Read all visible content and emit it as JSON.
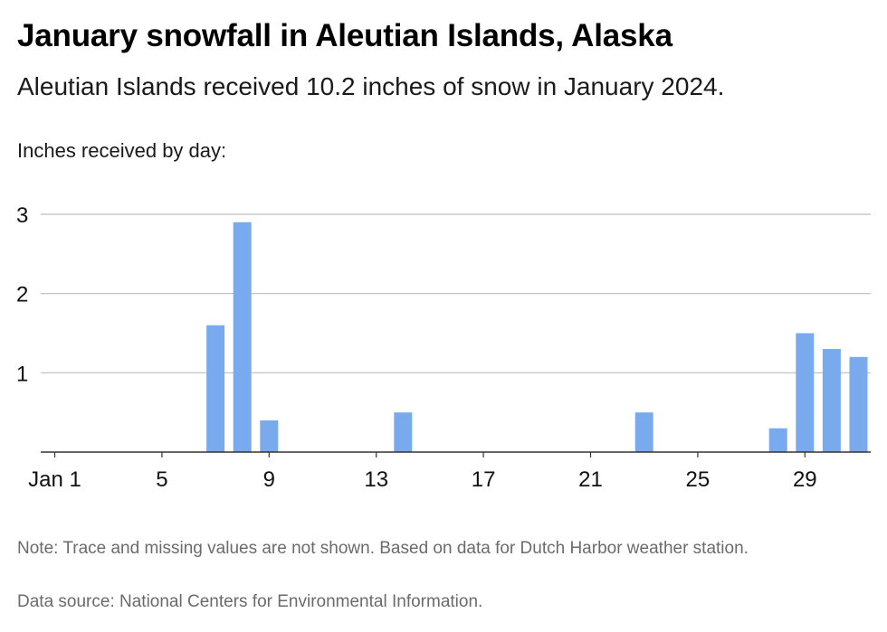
{
  "header": {
    "title": "January snowfall in Aleutian Islands, Alaska",
    "subtitle": "Aleutian Islands received 10.2 inches of snow in January 2024.",
    "axis_caption": "Inches received by day:"
  },
  "footer": {
    "note": "Note: Trace and missing values are not shown. Based on data for Dutch Harbor weather station.",
    "source": "Data source: National Centers for Environmental Information."
  },
  "colors": {
    "bar": "#7aaaee",
    "grid": "#bdbdbd",
    "axis": "#333333"
  },
  "chart_data": {
    "type": "bar",
    "title": "January snowfall in Aleutian Islands, Alaska",
    "ylabel": "Inches received by day:",
    "x": [
      1,
      2,
      3,
      4,
      5,
      6,
      7,
      8,
      9,
      10,
      11,
      12,
      13,
      14,
      15,
      16,
      17,
      18,
      19,
      20,
      21,
      22,
      23,
      24,
      25,
      26,
      27,
      28,
      29,
      30,
      31
    ],
    "values": [
      0,
      0,
      0,
      0,
      0,
      0,
      1.6,
      2.9,
      0.4,
      0,
      0,
      0,
      0,
      0.5,
      0,
      0,
      0,
      0,
      0,
      0,
      0,
      0,
      0.5,
      0,
      0,
      0,
      0,
      0.3,
      1.5,
      1.3,
      1.2
    ],
    "x_ticks": [
      {
        "day": 1,
        "label": "Jan 1"
      },
      {
        "day": 5,
        "label": "5"
      },
      {
        "day": 9,
        "label": "9"
      },
      {
        "day": 13,
        "label": "13"
      },
      {
        "day": 17,
        "label": "17"
      },
      {
        "day": 21,
        "label": "21"
      },
      {
        "day": 25,
        "label": "25"
      },
      {
        "day": 29,
        "label": "29"
      }
    ],
    "y_ticks": [
      1,
      2,
      3
    ],
    "ylim": [
      0,
      3
    ],
    "grid": true
  }
}
